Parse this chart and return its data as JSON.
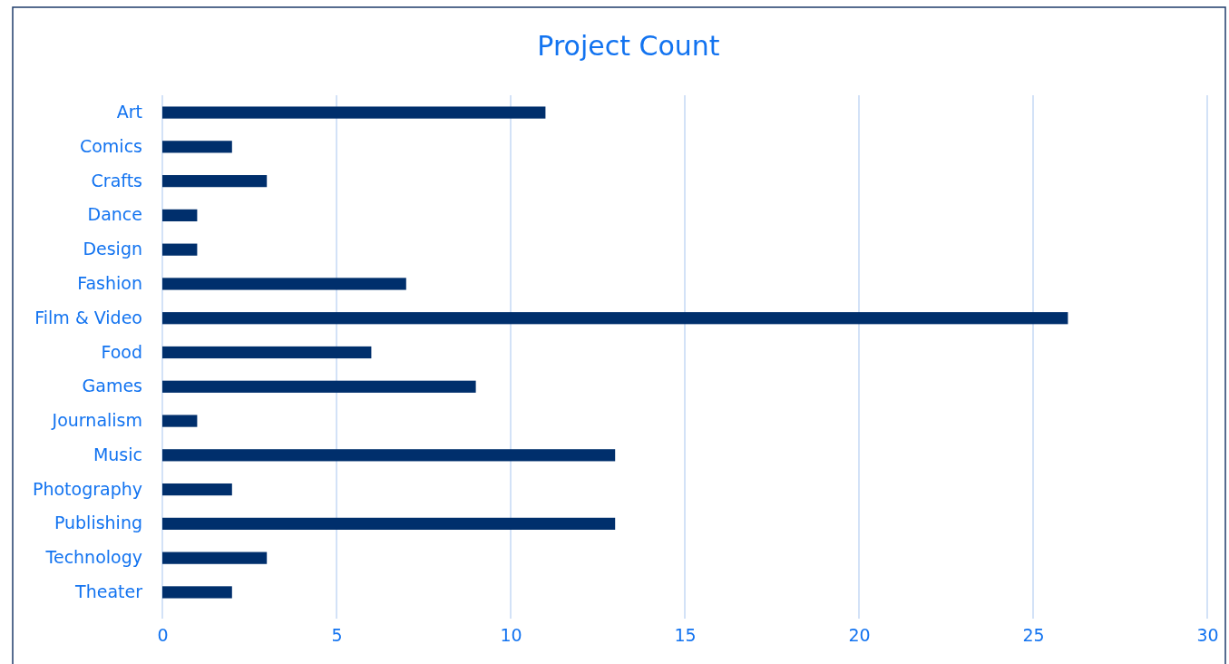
{
  "chart_data": {
    "type": "bar",
    "title": "Project Count",
    "orientation": "horizontal",
    "categories": [
      "Art",
      "Comics",
      "Crafts",
      "Dance",
      "Design",
      "Fashion",
      "Film & Video",
      "Food",
      "Games",
      "Journalism",
      "Music",
      "Photography",
      "Publishing",
      "Technology",
      "Theater"
    ],
    "values": [
      11,
      2,
      3,
      1,
      1,
      7,
      26,
      6,
      9,
      1,
      13,
      2,
      13,
      3,
      2
    ],
    "color": "#002f6c",
    "xlim": [
      0,
      30
    ],
    "xticks": [
      0,
      5,
      10,
      15,
      20,
      25,
      30
    ],
    "grid": "x"
  }
}
